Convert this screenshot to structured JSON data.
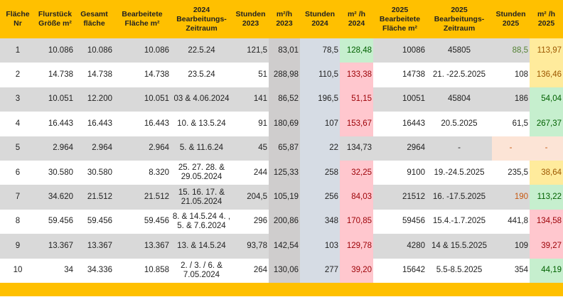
{
  "table": {
    "header": [
      "Fläche\nNr",
      "Flurstück\nGröße m²",
      "Gesamt\nfläche",
      "Bearbeitete\nFläche m²",
      "2024\nBearbeitungs-\nZeitraum",
      "Stunden\n2023",
      "m²/h\n2023",
      "Stunden\n2024",
      "m² /h\n2024",
      "2025\nBearbeitete\nFläche m²",
      "2025\nBearbeitungs-\nZeitraum",
      "Stunden\n2025",
      "m² /h\n2025"
    ],
    "rows": [
      [
        "1",
        "10.086",
        "10.086",
        "10.086",
        "22.5.24",
        "121,5",
        "83,01",
        "78,5",
        "128,48",
        "10086",
        "45805",
        "88,5",
        "113,97"
      ],
      [
        "2",
        "14.738",
        "14.738",
        "14.738",
        "23.5.24",
        "51",
        "288,98",
        "110,5",
        "133,38",
        "14738",
        "21. -22.5.2025",
        "108",
        "136,46"
      ],
      [
        "3",
        "10.051",
        "12.200",
        "10.051",
        "03 & 4.06.2024",
        "141",
        "86,52",
        "196,5",
        "51,15",
        "10051",
        "45804",
        "186",
        "54,04"
      ],
      [
        "4",
        "16.443",
        "16.443",
        "16.443",
        "10. & 13.5.24",
        "91",
        "180,69",
        "107",
        "153,67",
        "16443",
        "20.5.2025",
        "61,5",
        "267,37"
      ],
      [
        "5",
        "2.964",
        "2.964",
        "2.964",
        "5. & 11.6.24",
        "45",
        "65,87",
        "22",
        "134,73",
        "2964",
        "-",
        "-",
        "-"
      ],
      [
        "6",
        "30.580",
        "30.580",
        "8.320",
        "25. 27. 28. &\n29.05.2024",
        "244",
        "125,33",
        "258",
        "32,25",
        "9100",
        "19.-24.5.2025",
        "235,5",
        "38,64"
      ],
      [
        "7",
        "34.620",
        "21.512",
        "21.512",
        "15. 16. 17. &\n21.05.2024",
        "204,5",
        "105,19",
        "256",
        "84,03",
        "21512",
        "16. -17.5.2025",
        "190",
        "113,22"
      ],
      [
        "8",
        "59.456",
        "59.456",
        "59.456",
        "8. & 14.5.24   4. ,\n5. & 7.6.2024",
        "296",
        "200,86",
        "348",
        "170,85",
        "59456",
        "15.4.-1.7.2025",
        "441,8",
        "134,58"
      ],
      [
        "9",
        "13.367",
        "13.367",
        "13.367",
        "13. & 14.5.24",
        "93,78",
        "142,54",
        "103",
        "129,78",
        "4280",
        "14 & 15.5.2025",
        "109",
        "39,27"
      ],
      [
        "10",
        "34",
        "34.336",
        "10.858",
        "2. / 3. / 6. &\n7.05.2024",
        "264",
        "130,06",
        "277",
        "39,20",
        "15642",
        "5.5-8.5.2025",
        "354",
        "44,19"
      ]
    ]
  }
}
